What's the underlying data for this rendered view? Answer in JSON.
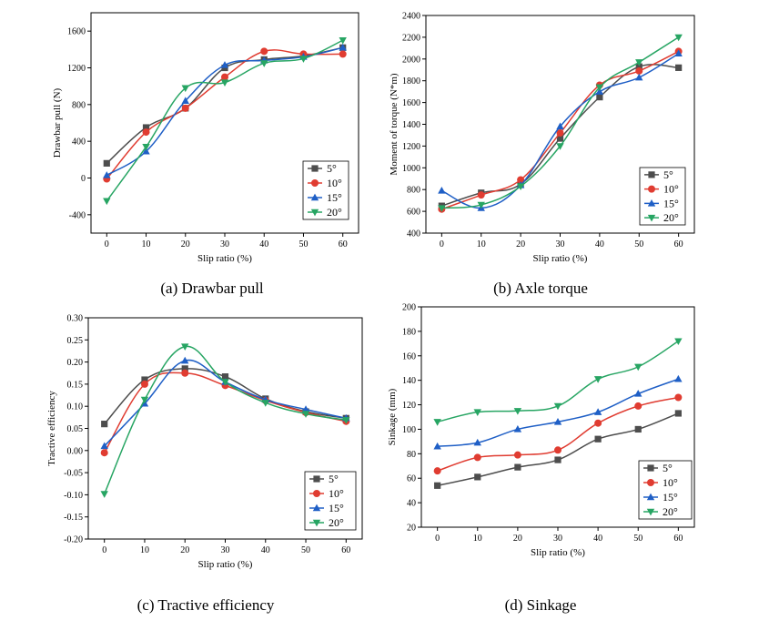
{
  "chart_data": [
    {
      "type": "line",
      "caption": "(a) Drawbar pull",
      "xlabel": "Slip ratio (%)",
      "ylabel": "Drawbar pull (N)",
      "x": [
        0,
        10,
        20,
        30,
        40,
        50,
        60
      ],
      "xticks": [
        "0",
        "10",
        "20",
        "30",
        "40",
        "50",
        "60"
      ],
      "ylim": [
        -600,
        1800
      ],
      "yticks": [
        "-400",
        "0",
        "400",
        "800",
        "1200",
        "1600"
      ],
      "series": [
        {
          "name": "5°",
          "values": [
            160,
            550,
            760,
            1200,
            1290,
            1330,
            1420
          ]
        },
        {
          "name": "10°",
          "values": [
            -10,
            500,
            760,
            1100,
            1380,
            1350,
            1350
          ]
        },
        {
          "name": "15°",
          "values": [
            30,
            290,
            840,
            1230,
            1280,
            1320,
            1420
          ]
        },
        {
          "name": "20°",
          "values": [
            -250,
            340,
            980,
            1040,
            1250,
            1300,
            1500
          ]
        }
      ]
    },
    {
      "type": "line",
      "caption": "(b) Axle torque",
      "xlabel": "Slip ratio (%)",
      "ylabel": "Moment of torque (N*m)",
      "x": [
        0,
        10,
        20,
        30,
        40,
        50,
        60
      ],
      "xticks": [
        "0",
        "10",
        "20",
        "30",
        "40",
        "50",
        "60"
      ],
      "ylim": [
        400,
        2400
      ],
      "yticks": [
        "400",
        "600",
        "800",
        "1000",
        "1200",
        "1400",
        "1600",
        "1800",
        "2000",
        "2200",
        "2400"
      ],
      "series": [
        {
          "name": "5°",
          "values": [
            650,
            770,
            850,
            1270,
            1650,
            1930,
            1920
          ]
        },
        {
          "name": "10°",
          "values": [
            620,
            750,
            890,
            1320,
            1760,
            1890,
            2070
          ]
        },
        {
          "name": "15°",
          "values": [
            790,
            630,
            840,
            1380,
            1700,
            1830,
            2050
          ]
        },
        {
          "name": "20°",
          "values": [
            630,
            660,
            830,
            1200,
            1740,
            1970,
            2200
          ]
        }
      ]
    },
    {
      "type": "line",
      "caption": "(c) Tractive efficiency",
      "xlabel": "Slip ratio (%)",
      "ylabel": "Tractive efficiency",
      "x": [
        0,
        10,
        20,
        30,
        40,
        50,
        60
      ],
      "xticks": [
        "0",
        "10",
        "20",
        "30",
        "40",
        "50",
        "60"
      ],
      "ylim": [
        -0.2,
        0.3
      ],
      "yticks": [
        "-0.20",
        "-0.15",
        "-0.10",
        "-0.05",
        "0.00",
        "0.05",
        "0.10",
        "0.15",
        "0.20",
        "0.25",
        "0.30"
      ],
      "series": [
        {
          "name": "5°",
          "values": [
            0.06,
            0.16,
            0.185,
            0.167,
            0.117,
            0.088,
            0.073
          ]
        },
        {
          "name": "10°",
          "values": [
            -0.005,
            0.15,
            0.175,
            0.147,
            0.113,
            0.086,
            0.066
          ]
        },
        {
          "name": "15°",
          "values": [
            0.01,
            0.106,
            0.203,
            0.155,
            0.115,
            0.093,
            0.073
          ]
        },
        {
          "name": "20°",
          "values": [
            -0.098,
            0.115,
            0.235,
            0.155,
            0.108,
            0.083,
            0.069
          ]
        }
      ]
    },
    {
      "type": "line",
      "caption": "(d) Sinkage",
      "xlabel": "Slip ratio (%)",
      "ylabel": "Sinkage (mm)",
      "x": [
        0,
        10,
        20,
        30,
        40,
        50,
        60
      ],
      "xticks": [
        "0",
        "10",
        "20",
        "30",
        "40",
        "50",
        "60"
      ],
      "ylim": [
        20,
        200
      ],
      "yticks": [
        "20",
        "40",
        "60",
        "80",
        "100",
        "120",
        "140",
        "160",
        "180",
        "200"
      ],
      "series": [
        {
          "name": "5°",
          "values": [
            54,
            61,
            69,
            75,
            92,
            100,
            113
          ]
        },
        {
          "name": "10°",
          "values": [
            66,
            77,
            79,
            83,
            105,
            119,
            126
          ]
        },
        {
          "name": "15°",
          "values": [
            86,
            89,
            100,
            106,
            114,
            129,
            141
          ]
        },
        {
          "name": "20°",
          "values": [
            106,
            114,
            115,
            119,
            141,
            151,
            172
          ]
        }
      ]
    }
  ],
  "series_styles": [
    {
      "name": "5°",
      "color": "#4d4d4d",
      "marker": "square"
    },
    {
      "name": "10°",
      "color": "#e03c31",
      "marker": "circle"
    },
    {
      "name": "15°",
      "color": "#1f5fc6",
      "marker": "triangle-up"
    },
    {
      "name": "20°",
      "color": "#27a563",
      "marker": "triangle-down"
    }
  ]
}
